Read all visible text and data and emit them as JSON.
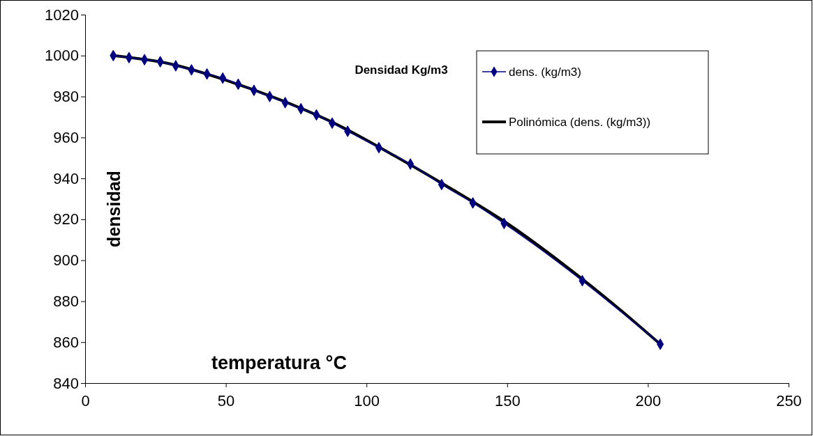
{
  "chart_data": {
    "type": "line",
    "title": "Densidad Kg/m3",
    "xlabel": "temperatura °C",
    "ylabel": "densidad",
    "xlim": [
      0,
      250
    ],
    "xticks": [
      0,
      50,
      100,
      150,
      200,
      250
    ],
    "ylim": [
      840,
      1020
    ],
    "yticks": [
      840,
      860,
      880,
      900,
      920,
      940,
      960,
      980,
      1000,
      1020
    ],
    "legend": "top right",
    "grid": false,
    "series": [
      {
        "name": "dens. (kg/m3)",
        "color": "#000080",
        "marker": "diamond",
        "x": [
          10,
          15.6,
          21.1,
          26.7,
          32.2,
          37.8,
          43.3,
          48.9,
          54.4,
          60,
          65.6,
          71.1,
          76.7,
          82.2,
          87.8,
          93.3,
          104.4,
          115.6,
          126.7,
          137.8,
          148.9,
          176.7,
          204.4
        ],
        "values": [
          1000,
          999,
          998,
          997,
          995,
          993,
          991,
          989,
          986,
          983,
          980,
          977,
          974,
          971,
          967,
          963,
          955,
          947,
          937,
          928,
          918,
          890,
          859
        ]
      },
      {
        "name": "Polinómica (dens. (kg/m3))",
        "color": "#000000",
        "marker": "none",
        "x": [
          10,
          30,
          50,
          70,
          90,
          110,
          130,
          150,
          170,
          190,
          204.4
        ],
        "values": [
          1000,
          996,
          988,
          978,
          966,
          951,
          935,
          918,
          898,
          876,
          859
        ]
      }
    ]
  }
}
